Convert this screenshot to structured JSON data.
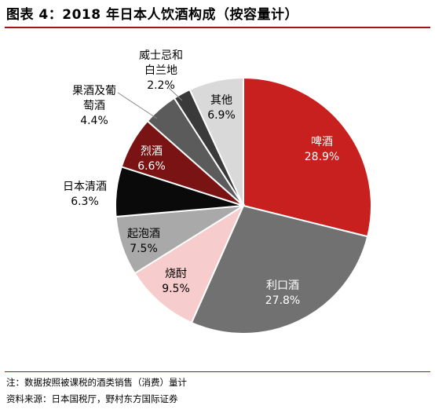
{
  "title": "图表 4：2018 年日本人饮酒构成（按容量计）",
  "note": "注：数据按照被课税的酒类销售（消费）量计",
  "source": "资料来源：日本国税厅，野村东方国际证券",
  "chart_data": {
    "type": "pie",
    "title": "图表 4：2018 年日本人饮酒构成（按容量计）",
    "unit": "%",
    "slices": [
      {
        "name": "啤酒",
        "value": 28.9,
        "label": "28.9%",
        "color": "#c8201f",
        "label_color": "#ffffff"
      },
      {
        "name": "利口酒",
        "value": 27.8,
        "label": "27.8%",
        "color": "#717171",
        "label_color": "#ffffff"
      },
      {
        "name": "烧酎",
        "value": 9.5,
        "label": "9.5%",
        "color": "#f6cccc",
        "label_color": "#000000"
      },
      {
        "name": "起泡酒",
        "value": 7.5,
        "label": "7.5%",
        "color": "#a9a9a9",
        "label_color": "#000000"
      },
      {
        "name": "日本清酒",
        "value": 6.3,
        "label": "6.3%",
        "color": "#0a0a0a",
        "label_color": "#000000"
      },
      {
        "name": "烈酒",
        "value": 6.6,
        "label": "6.6%",
        "color": "#7a1414",
        "label_color": "#ffffff"
      },
      {
        "name": "果酒及葡萄酒",
        "value": 4.4,
        "label": "4.4%",
        "color": "#5b5b5b",
        "label_color": "#000000"
      },
      {
        "name": "威士忌和白兰地",
        "value": 2.2,
        "label": "2.2%",
        "color": "#3a3a3a",
        "label_color": "#000000"
      },
      {
        "name": "其他",
        "value": 6.9,
        "label": "6.9%",
        "color": "#d9d9d9",
        "label_color": "#000000"
      }
    ]
  }
}
